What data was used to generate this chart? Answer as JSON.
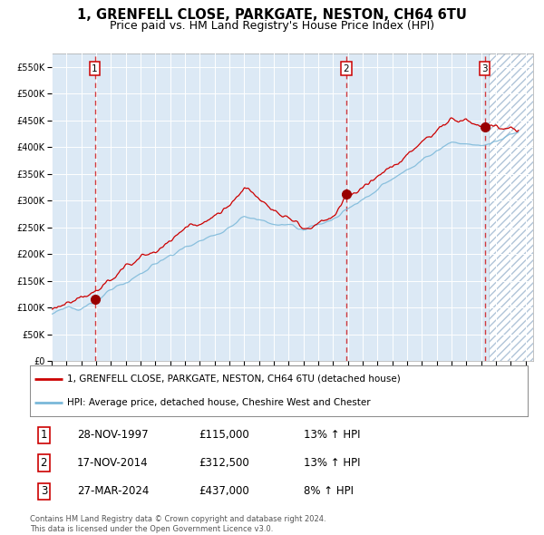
{
  "title": "1, GRENFELL CLOSE, PARKGATE, NESTON, CH64 6TU",
  "subtitle": "Price paid vs. HM Land Registry's House Price Index (HPI)",
  "ylim": [
    0,
    575000
  ],
  "xlim_start": 1995.0,
  "xlim_end": 2027.5,
  "yticks": [
    0,
    50000,
    100000,
    150000,
    200000,
    250000,
    300000,
    350000,
    400000,
    450000,
    500000,
    550000
  ],
  "ytick_labels": [
    "£0",
    "£50K",
    "£100K",
    "£150K",
    "£200K",
    "£250K",
    "£300K",
    "£350K",
    "£400K",
    "£450K",
    "£500K",
    "£550K"
  ],
  "xtick_years": [
    1995,
    1996,
    1997,
    1998,
    1999,
    2000,
    2001,
    2002,
    2003,
    2004,
    2005,
    2006,
    2007,
    2008,
    2009,
    2010,
    2011,
    2012,
    2013,
    2014,
    2015,
    2016,
    2017,
    2018,
    2019,
    2020,
    2021,
    2022,
    2023,
    2024,
    2025,
    2026,
    2027
  ],
  "sale_dates": [
    1997.91,
    2014.88,
    2024.23
  ],
  "sale_prices": [
    115000,
    312500,
    437000
  ],
  "sale_labels": [
    "1",
    "2",
    "3"
  ],
  "hpi_line_color": "#7ab8d9",
  "price_line_color": "#cc0000",
  "sale_dot_color": "#990000",
  "vline_color": "#cc0000",
  "background_color": "#dce9f5",
  "future_start": 2024.5,
  "grid_color": "#ffffff",
  "legend_entries": [
    "1, GRENFELL CLOSE, PARKGATE, NESTON, CH64 6TU (detached house)",
    "HPI: Average price, detached house, Cheshire West and Chester"
  ],
  "table_rows": [
    [
      "1",
      "28-NOV-1997",
      "£115,000",
      "13% ↑ HPI"
    ],
    [
      "2",
      "17-NOV-2014",
      "£312,500",
      "13% ↑ HPI"
    ],
    [
      "3",
      "27-MAR-2024",
      "£437,000",
      "8% ↑ HPI"
    ]
  ],
  "footer": "Contains HM Land Registry data © Crown copyright and database right 2024.\nThis data is licensed under the Open Government Licence v3.0."
}
